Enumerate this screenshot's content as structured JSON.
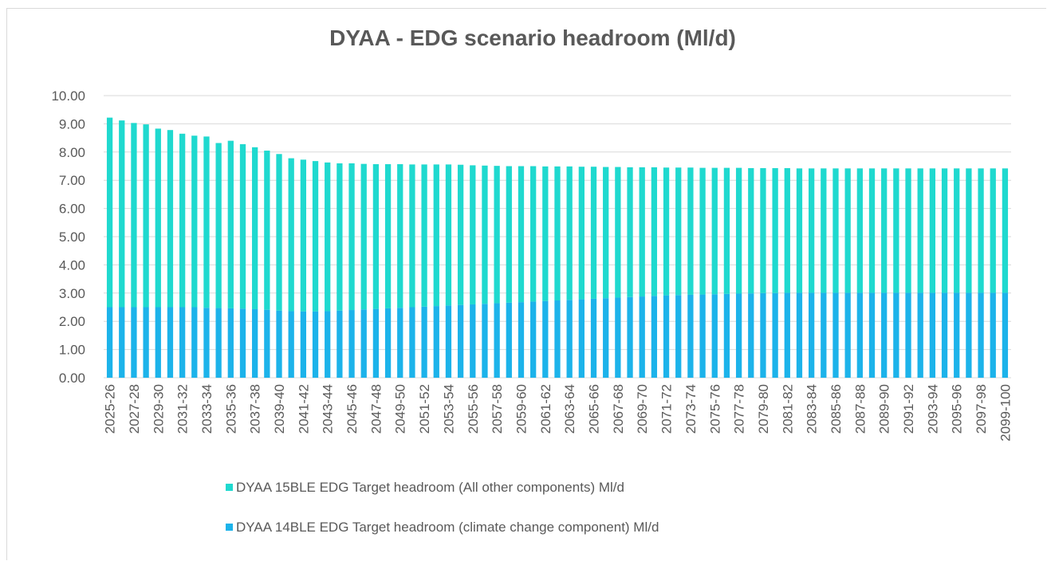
{
  "chart_data": {
    "type": "stacked-bar",
    "title": "DYAA - EDG scenario headroom (Ml/d)",
    "categories": [
      "2025-26",
      null,
      "2027-28",
      null,
      "2029-30",
      null,
      "2031-32",
      null,
      "2033-34",
      null,
      "2035-36",
      null,
      "2037-38",
      null,
      "2039-40",
      null,
      "2041-42",
      null,
      "2043-44",
      null,
      "2045-46",
      null,
      "2047-48",
      null,
      "2049-50",
      null,
      "2051-52",
      null,
      "2053-54",
      null,
      "2055-56",
      null,
      "2057-58",
      null,
      "2059-60",
      null,
      "2061-62",
      null,
      "2063-64",
      null,
      "2065-66",
      null,
      "2067-68",
      null,
      "2069-70",
      null,
      "2071-72",
      null,
      "2073-74",
      null,
      "2075-76",
      null,
      "2077-78",
      null,
      "2079-80",
      null,
      "2081-82",
      null,
      "2083-84",
      null,
      "2085-86",
      null,
      "2087-88",
      null,
      "2089-90",
      null,
      "2091-92",
      null,
      "2093-94",
      null,
      "2095-96",
      null,
      "2097-98",
      null,
      "2099-100"
    ],
    "series": [
      {
        "name": "DYAA 14BLE EDG Target headroom (climate change component) Ml/d",
        "color": "#1cb3ea",
        "values": [
          2.5,
          2.5,
          2.5,
          2.5,
          2.5,
          2.5,
          2.5,
          2.5,
          2.48,
          2.47,
          2.46,
          2.45,
          2.43,
          2.41,
          2.38,
          2.36,
          2.35,
          2.35,
          2.36,
          2.38,
          2.4,
          2.42,
          2.44,
          2.46,
          2.48,
          2.5,
          2.52,
          2.54,
          2.56,
          2.58,
          2.6,
          2.62,
          2.64,
          2.66,
          2.68,
          2.7,
          2.72,
          2.74,
          2.76,
          2.78,
          2.8,
          2.82,
          2.84,
          2.86,
          2.88,
          2.9,
          2.92,
          2.93,
          2.94,
          2.95,
          2.96,
          2.97,
          2.98,
          2.99,
          3.0,
          3.0,
          3.01,
          3.01,
          3.01,
          3.01,
          3.01,
          3.01,
          3.01,
          3.01,
          3.01,
          3.01,
          3.01,
          3.01,
          3.01,
          3.01,
          3.01,
          3.01,
          3.01,
          3.01,
          3.01
        ]
      },
      {
        "name": "DYAA 15BLE EDG Target headroom (All other components) Ml/d",
        "color": "#1fd9cf",
        "values": [
          6.72,
          6.62,
          6.53,
          6.48,
          6.33,
          6.28,
          6.15,
          6.08,
          6.07,
          5.85,
          5.94,
          5.83,
          5.74,
          5.64,
          5.55,
          5.42,
          5.38,
          5.33,
          5.27,
          5.22,
          5.2,
          5.16,
          5.13,
          5.11,
          5.09,
          5.06,
          5.04,
          5.02,
          5.0,
          4.97,
          4.93,
          4.9,
          4.87,
          4.84,
          4.82,
          4.8,
          4.77,
          4.75,
          4.73,
          4.7,
          4.68,
          4.65,
          4.63,
          4.6,
          4.58,
          4.56,
          4.53,
          4.52,
          4.51,
          4.49,
          4.48,
          4.47,
          4.46,
          4.44,
          4.43,
          4.43,
          4.42,
          4.41,
          4.41,
          4.41,
          4.41,
          4.41,
          4.41,
          4.41,
          4.41,
          4.41,
          4.41,
          4.41,
          4.41,
          4.41,
          4.41,
          4.41,
          4.41,
          4.41,
          4.41
        ]
      }
    ],
    "ylim": [
      0,
      10
    ],
    "yticks": [
      {
        "value": 0,
        "label": "0.00"
      },
      {
        "value": 1,
        "label": "1.00"
      },
      {
        "value": 2,
        "label": "2.00"
      },
      {
        "value": 3,
        "label": "3.00"
      },
      {
        "value": 4,
        "label": "4.00"
      },
      {
        "value": 5,
        "label": "5.00"
      },
      {
        "value": 6,
        "label": "6.00"
      },
      {
        "value": 7,
        "label": "7.00"
      },
      {
        "value": 8,
        "label": "8.00"
      },
      {
        "value": 9,
        "label": "9.00"
      },
      {
        "value": 10,
        "label": "10.00"
      }
    ],
    "grid": true
  }
}
